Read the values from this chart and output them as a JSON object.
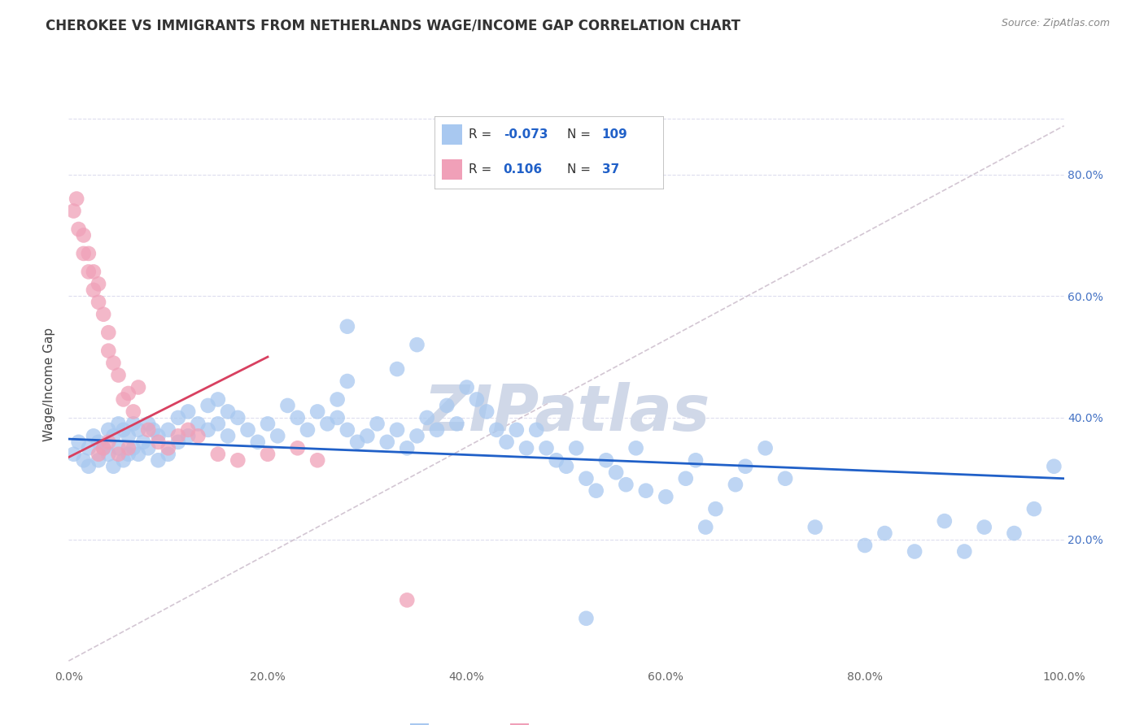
{
  "title": "CHEROKEE VS IMMIGRANTS FROM NETHERLANDS WAGE/INCOME GAP CORRELATION CHART",
  "source": "Source: ZipAtlas.com",
  "ylabel": "Wage/Income Gap",
  "xlim": [
    0,
    1.0
  ],
  "ylim": [
    -0.01,
    0.92
  ],
  "xtick_labels": [
    "0.0%",
    "20.0%",
    "40.0%",
    "60.0%",
    "80.0%",
    "100.0%"
  ],
  "xtick_vals": [
    0,
    0.2,
    0.4,
    0.6,
    0.8,
    1.0
  ],
  "ytick_labels": [
    "20.0%",
    "40.0%",
    "60.0%",
    "80.0%"
  ],
  "ytick_vals": [
    0.2,
    0.4,
    0.6,
    0.8
  ],
  "blue_color": "#A8C8F0",
  "pink_color": "#F0A0B8",
  "trend_blue": "#2060C8",
  "trend_pink": "#D84060",
  "ref_line_color": "#C8B8C8",
  "background_color": "#FFFFFF",
  "grid_color": "#DDDDEE",
  "watermark": "ZIPatlas",
  "watermark_color": "#D0D8E8",
  "title_color": "#333333",
  "right_tick_color": "#4472C4",
  "blue_scatter_x": [
    0.005,
    0.01,
    0.015,
    0.02,
    0.02,
    0.025,
    0.03,
    0.03,
    0.035,
    0.04,
    0.04,
    0.045,
    0.045,
    0.05,
    0.05,
    0.055,
    0.055,
    0.06,
    0.06,
    0.065,
    0.065,
    0.07,
    0.07,
    0.075,
    0.08,
    0.08,
    0.085,
    0.09,
    0.09,
    0.1,
    0.1,
    0.11,
    0.11,
    0.12,
    0.12,
    0.13,
    0.14,
    0.14,
    0.15,
    0.15,
    0.16,
    0.16,
    0.17,
    0.18,
    0.19,
    0.2,
    0.21,
    0.22,
    0.23,
    0.24,
    0.25,
    0.26,
    0.27,
    0.27,
    0.28,
    0.29,
    0.3,
    0.31,
    0.32,
    0.33,
    0.34,
    0.35,
    0.36,
    0.37,
    0.38,
    0.39,
    0.4,
    0.41,
    0.42,
    0.43,
    0.44,
    0.45,
    0.46,
    0.47,
    0.48,
    0.49,
    0.5,
    0.51,
    0.52,
    0.53,
    0.54,
    0.55,
    0.56,
    0.57,
    0.58,
    0.6,
    0.62,
    0.63,
    0.64,
    0.65,
    0.67,
    0.68,
    0.7,
    0.72,
    0.75,
    0.8,
    0.82,
    0.85,
    0.88,
    0.9,
    0.92,
    0.95,
    0.97,
    0.99,
    0.28,
    0.28,
    0.33,
    0.35,
    0.52
  ],
  "blue_scatter_y": [
    0.34,
    0.36,
    0.33,
    0.35,
    0.32,
    0.37,
    0.36,
    0.33,
    0.35,
    0.38,
    0.34,
    0.37,
    0.32,
    0.39,
    0.35,
    0.38,
    0.33,
    0.37,
    0.34,
    0.39,
    0.35,
    0.38,
    0.34,
    0.36,
    0.39,
    0.35,
    0.38,
    0.37,
    0.33,
    0.38,
    0.34,
    0.4,
    0.36,
    0.41,
    0.37,
    0.39,
    0.42,
    0.38,
    0.43,
    0.39,
    0.41,
    0.37,
    0.4,
    0.38,
    0.36,
    0.39,
    0.37,
    0.42,
    0.4,
    0.38,
    0.41,
    0.39,
    0.43,
    0.4,
    0.38,
    0.36,
    0.37,
    0.39,
    0.36,
    0.38,
    0.35,
    0.37,
    0.4,
    0.38,
    0.42,
    0.39,
    0.45,
    0.43,
    0.41,
    0.38,
    0.36,
    0.38,
    0.35,
    0.38,
    0.35,
    0.33,
    0.32,
    0.35,
    0.3,
    0.28,
    0.33,
    0.31,
    0.29,
    0.35,
    0.28,
    0.27,
    0.3,
    0.33,
    0.22,
    0.25,
    0.29,
    0.32,
    0.35,
    0.3,
    0.22,
    0.19,
    0.21,
    0.18,
    0.23,
    0.18,
    0.22,
    0.21,
    0.25,
    0.32,
    0.55,
    0.46,
    0.48,
    0.52,
    0.07
  ],
  "pink_scatter_x": [
    0.005,
    0.008,
    0.01,
    0.015,
    0.015,
    0.02,
    0.02,
    0.025,
    0.025,
    0.03,
    0.03,
    0.035,
    0.04,
    0.04,
    0.045,
    0.05,
    0.055,
    0.06,
    0.065,
    0.07,
    0.08,
    0.09,
    0.1,
    0.11,
    0.12,
    0.13,
    0.15,
    0.17,
    0.2,
    0.23,
    0.25,
    0.03,
    0.035,
    0.04,
    0.05,
    0.06,
    0.34
  ],
  "pink_scatter_y": [
    0.74,
    0.76,
    0.71,
    0.7,
    0.67,
    0.67,
    0.64,
    0.64,
    0.61,
    0.62,
    0.59,
    0.57,
    0.54,
    0.51,
    0.49,
    0.47,
    0.43,
    0.44,
    0.41,
    0.45,
    0.38,
    0.36,
    0.35,
    0.37,
    0.38,
    0.37,
    0.34,
    0.33,
    0.34,
    0.35,
    0.33,
    0.34,
    0.35,
    0.36,
    0.34,
    0.35,
    0.1
  ],
  "blue_trend_x": [
    0.0,
    1.0
  ],
  "blue_trend_y": [
    0.365,
    0.3
  ],
  "pink_trend_x": [
    0.0,
    0.2
  ],
  "pink_trend_y": [
    0.335,
    0.5
  ],
  "ref_line_x": [
    0.0,
    1.0
  ],
  "ref_line_y": [
    0.0,
    0.88
  ]
}
